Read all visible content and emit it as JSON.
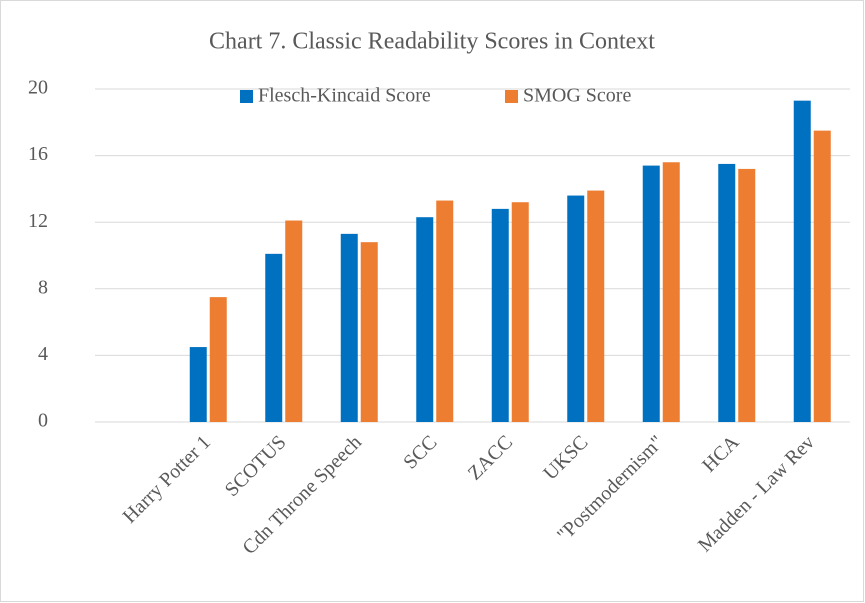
{
  "chart_data": {
    "type": "bar",
    "title": "Chart 7. Classic Readability Scores in Context",
    "categories": [
      null,
      "Harry Potter 1",
      "SCOTUS",
      "Cdn Throne Speech",
      "SCC",
      "ZACC",
      "UKSC",
      "\"Postmodernism\"",
      "HCA",
      "Madden - Law Rev"
    ],
    "series": [
      {
        "name": "Flesch-Kincaid Score",
        "color": "#0070c0",
        "values": [
          null,
          4.5,
          10.1,
          11.3,
          12.3,
          12.8,
          13.6,
          15.4,
          15.5,
          19.3
        ]
      },
      {
        "name": "SMOG Score",
        "color": "#ed7d31",
        "values": [
          null,
          7.5,
          12.1,
          10.8,
          13.3,
          13.2,
          13.9,
          15.6,
          15.2,
          17.5
        ]
      }
    ],
    "ylim": [
      0,
      20
    ],
    "yticks": [
      0,
      4,
      8,
      12,
      16,
      20
    ],
    "grid": true,
    "legend": "top"
  }
}
